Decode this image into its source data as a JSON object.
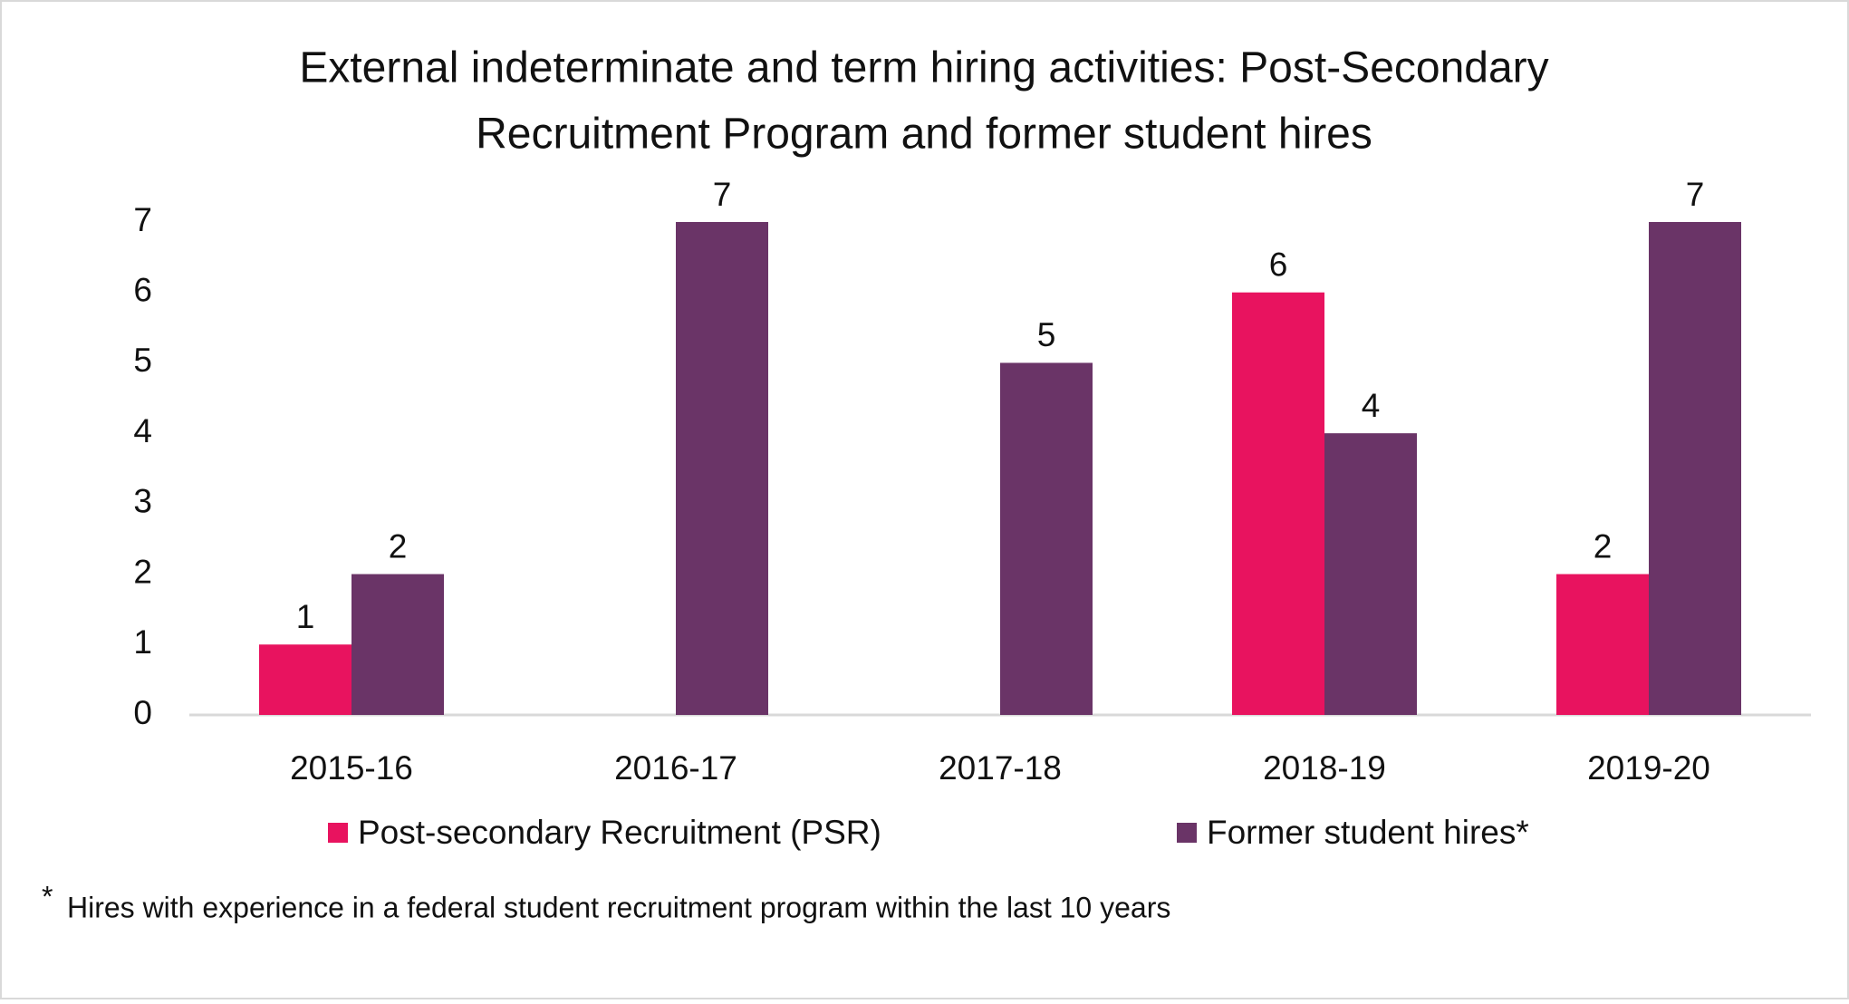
{
  "chart_data": {
    "type": "bar",
    "title": [
      "External indeterminate and term hiring activities: Post-Secondary",
      "Recruitment Program and former student hires"
    ],
    "categories": [
      "2015-16",
      "2016-17",
      "2017-18",
      "2018-19",
      "2019-20"
    ],
    "series": [
      {
        "name": "Post-secondary Recruitment (PSR)",
        "color": "#e8135f",
        "values": [
          1,
          null,
          null,
          6,
          2
        ]
      },
      {
        "name": "Former student hires*",
        "color": "#6a3467",
        "values": [
          2,
          7,
          5,
          4,
          7
        ]
      }
    ],
    "ylim": [
      0,
      7
    ],
    "yticks": [
      0,
      1,
      2,
      3,
      4,
      5,
      6,
      7
    ],
    "grid": false,
    "footnote": {
      "marker": "*",
      "text": "Hires with experience in a federal student recruitment program within the last 10 years"
    }
  }
}
